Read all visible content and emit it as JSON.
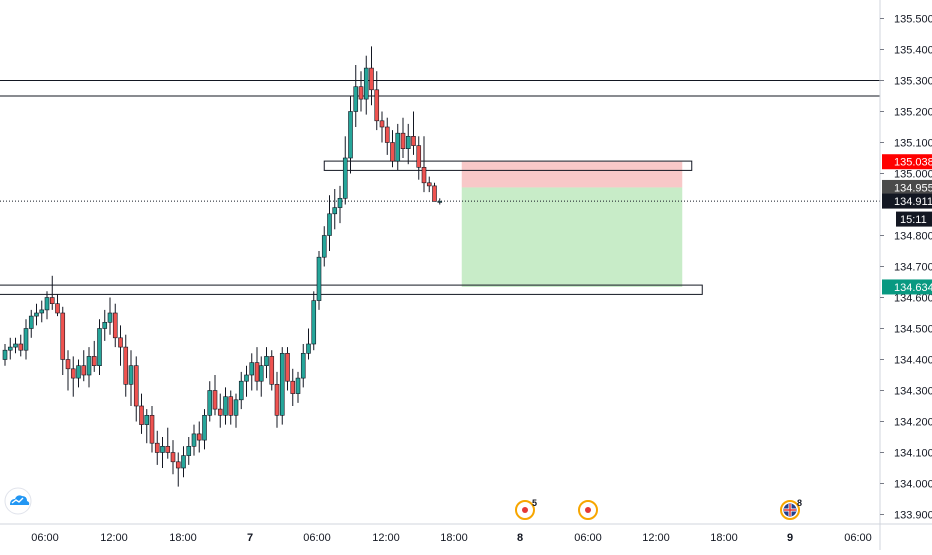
{
  "colors": {
    "up": "#26a69a",
    "down": "#ef5350",
    "wick": "#131722",
    "stop_zone": "#f8c8c8",
    "target_zone": "#c8ecc8",
    "stop_badge": "#ff0000",
    "target_badge": "#089981",
    "current_badge": "#131722",
    "entry_badge": "#4a4a4a",
    "axis_border": "#d1d4dc"
  },
  "icons": {
    "logo": "tradingview-cloud-icon",
    "event": "economic-event-icon",
    "flag": "uk-flag-icon"
  },
  "price_scale": {
    "ticks": [
      "135.500",
      "135.400",
      "135.300",
      "135.200",
      "135.100",
      "135.000",
      "134.800",
      "134.700",
      "134.600",
      "134.500",
      "134.400",
      "134.300",
      "134.200",
      "134.100",
      "134.000",
      "133.900"
    ],
    "tick_values": [
      135.5,
      135.4,
      135.3,
      135.2,
      135.1,
      135.0,
      134.8,
      134.7,
      134.6,
      134.5,
      134.4,
      134.3,
      134.2,
      134.1,
      134.0,
      133.9
    ]
  },
  "time_axis": {
    "labels": [
      "06:00",
      "12:00",
      "18:00",
      "7",
      "06:00",
      "12:00",
      "18:00",
      "8",
      "06:00",
      "12:00",
      "18:00",
      "9",
      "06:00"
    ],
    "label_hours": [
      6,
      12,
      18,
      24,
      30,
      36,
      42,
      48,
      54,
      60,
      66,
      72,
      78
    ]
  },
  "badges": {
    "stop": "135.038",
    "entry": "134.955",
    "current": "134.911",
    "countdown": "15:11",
    "target": "134.634"
  },
  "events": [
    {
      "hour": 48.0,
      "count": "5",
      "icon": "economic-event-icon"
    },
    {
      "hour": 54.0,
      "count": "",
      "icon": "economic-event-icon"
    },
    {
      "hour": 72.0,
      "count": "8",
      "icon": "uk-flag-icon"
    }
  ],
  "chart_data": {
    "type": "candlestick",
    "title": "",
    "xlabel": "",
    "ylabel": "",
    "ylim": [
      133.875,
      135.535
    ],
    "x_unit": "hours from start of day 6",
    "candles_x": [
      0,
      0.5,
      1,
      1.5,
      2,
      2.5,
      3,
      3.5,
      4,
      4.5,
      5,
      5.5,
      6,
      6.5,
      7,
      7.5,
      8,
      8.5,
      9,
      9.5,
      10,
      10.5,
      11,
      11.5,
      12,
      12.5,
      13,
      13.5,
      14,
      14.5,
      15,
      15.5,
      16,
      16.5,
      17,
      17.5,
      18,
      18.5,
      19,
      19.5,
      20,
      20.5,
      21,
      21.5,
      22,
      22.5,
      23,
      23.5,
      24,
      24.5,
      25,
      25.5,
      26,
      26.5,
      27,
      27.5,
      28,
      28.5,
      29,
      29.5,
      30,
      30.5,
      31,
      31.5,
      32,
      32.5,
      33,
      33.5,
      34,
      34.5,
      35,
      35.5,
      36,
      36.5,
      37,
      37.5,
      38,
      38.5,
      39,
      39.5,
      40,
      40.5,
      41,
      41.5,
      42,
      42.5,
      43,
      43.5
    ],
    "candles": [
      [
        134.4,
        134.45,
        134.38,
        134.43
      ],
      [
        134.43,
        134.47,
        134.4,
        134.44
      ],
      [
        134.44,
        134.47,
        134.42,
        134.45
      ],
      [
        134.45,
        134.48,
        134.41,
        134.43
      ],
      [
        134.43,
        134.53,
        134.4,
        134.5
      ],
      [
        134.5,
        134.56,
        134.47,
        134.54
      ],
      [
        134.54,
        134.58,
        134.51,
        134.55
      ],
      [
        134.55,
        134.59,
        134.52,
        134.56
      ],
      [
        134.56,
        134.62,
        134.53,
        134.6
      ],
      [
        134.6,
        134.67,
        134.56,
        134.58
      ],
      [
        134.58,
        134.61,
        134.54,
        134.55
      ],
      [
        134.55,
        134.57,
        134.35,
        134.4
      ],
      [
        134.4,
        134.43,
        134.3,
        134.37
      ],
      [
        134.37,
        134.41,
        134.28,
        134.34
      ],
      [
        134.34,
        134.4,
        134.31,
        134.38
      ],
      [
        134.38,
        134.43,
        134.33,
        134.35
      ],
      [
        134.35,
        134.44,
        134.31,
        134.41
      ],
      [
        134.41,
        134.46,
        134.36,
        134.38
      ],
      [
        134.38,
        134.53,
        134.35,
        134.5
      ],
      [
        134.5,
        134.56,
        134.46,
        134.52
      ],
      [
        134.52,
        134.6,
        134.48,
        134.55
      ],
      [
        134.55,
        134.58,
        134.44,
        134.47
      ],
      [
        134.47,
        134.51,
        134.38,
        134.44
      ],
      [
        134.44,
        134.48,
        134.28,
        134.32
      ],
      [
        134.32,
        134.43,
        134.25,
        134.38
      ],
      [
        134.38,
        134.41,
        134.2,
        134.25
      ],
      [
        134.25,
        134.29,
        134.16,
        134.19
      ],
      [
        134.19,
        134.24,
        134.13,
        134.22
      ],
      [
        134.22,
        134.25,
        134.1,
        134.13
      ],
      [
        134.13,
        134.17,
        134.06,
        134.1
      ],
      [
        134.1,
        134.15,
        134.05,
        134.12
      ],
      [
        134.12,
        134.18,
        134.08,
        134.1
      ],
      [
        134.1,
        134.14,
        134.03,
        134.07
      ],
      [
        134.07,
        134.1,
        133.99,
        134.05
      ],
      [
        134.05,
        134.12,
        134.02,
        134.09
      ],
      [
        134.09,
        134.15,
        134.06,
        134.12
      ],
      [
        134.12,
        134.19,
        134.09,
        134.16
      ],
      [
        134.16,
        134.2,
        134.1,
        134.14
      ],
      [
        134.14,
        134.24,
        134.11,
        134.22
      ],
      [
        134.22,
        134.33,
        134.2,
        134.3
      ],
      [
        134.3,
        134.35,
        134.22,
        134.24
      ],
      [
        134.24,
        134.29,
        134.18,
        134.22
      ],
      [
        134.22,
        134.31,
        134.19,
        134.28
      ],
      [
        134.28,
        134.3,
        134.19,
        134.22
      ],
      [
        134.22,
        134.29,
        134.18,
        134.27
      ],
      [
        134.27,
        134.36,
        134.24,
        134.33
      ],
      [
        134.33,
        134.38,
        134.28,
        134.35
      ],
      [
        134.35,
        134.42,
        134.3,
        134.39
      ],
      [
        134.39,
        134.44,
        134.3,
        134.33
      ],
      [
        134.33,
        134.41,
        134.28,
        134.38
      ],
      [
        134.38,
        134.44,
        134.34,
        134.41
      ],
      [
        134.41,
        134.43,
        134.3,
        134.32
      ],
      [
        134.32,
        134.36,
        134.18,
        134.22
      ],
      [
        134.22,
        134.44,
        134.19,
        134.42
      ],
      [
        134.42,
        134.44,
        134.3,
        134.33
      ],
      [
        134.33,
        134.37,
        134.25,
        134.29
      ],
      [
        134.29,
        134.36,
        134.26,
        134.34
      ],
      [
        134.34,
        134.45,
        134.31,
        134.42
      ],
      [
        134.42,
        134.5,
        134.4,
        134.45
      ],
      [
        134.45,
        134.62,
        134.43,
        134.59
      ],
      [
        134.59,
        134.75,
        134.56,
        134.73
      ],
      [
        134.73,
        134.83,
        134.7,
        134.8
      ],
      [
        134.8,
        134.93,
        134.75,
        134.87
      ],
      [
        134.87,
        134.95,
        134.82,
        134.89
      ],
      [
        134.89,
        134.96,
        134.84,
        134.92
      ],
      [
        134.92,
        135.12,
        134.9,
        135.05
      ],
      [
        135.05,
        135.25,
        135.0,
        135.2
      ],
      [
        135.2,
        135.35,
        135.15,
        135.28
      ],
      [
        135.28,
        135.33,
        135.2,
        135.24
      ],
      [
        135.24,
        135.38,
        135.19,
        135.34
      ],
      [
        135.34,
        135.41,
        135.22,
        135.27
      ],
      [
        135.27,
        135.33,
        135.14,
        135.17
      ],
      [
        135.17,
        135.2,
        135.1,
        135.15
      ],
      [
        135.15,
        135.18,
        135.06,
        135.1
      ],
      [
        135.1,
        135.14,
        135.02,
        135.04
      ],
      [
        135.04,
        135.16,
        135.01,
        135.13
      ],
      [
        135.13,
        135.18,
        135.05,
        135.08
      ],
      [
        135.08,
        135.16,
        135.03,
        135.12
      ],
      [
        135.12,
        135.2,
        135.06,
        135.09
      ],
      [
        135.09,
        135.12,
        134.98,
        135.02
      ],
      [
        135.02,
        135.12,
        134.94,
        134.97
      ],
      [
        134.97,
        134.99,
        134.94,
        134.96
      ],
      [
        134.96,
        134.97,
        134.91,
        134.91
      ],
      [
        134.91,
        134.92,
        134.9,
        134.91
      ],
      [
        134.91,
        134.91,
        134.91,
        134.91
      ],
      [
        134.91,
        134.91,
        134.91,
        134.91
      ],
      [
        134.91,
        134.91,
        134.91,
        134.91
      ],
      [
        134.91,
        134.91,
        134.91,
        134.91
      ]
    ],
    "candle_count_visible": 84,
    "horizontal_levels": [
      {
        "name": "resistance-zone",
        "low": 135.25,
        "high": 135.3,
        "x_from": -1,
        "x_to": 90
      },
      {
        "name": "entry-zone",
        "low": 135.01,
        "high": 135.04,
        "x_from": 30.5,
        "x_to": 65.5
      },
      {
        "name": "support-zone",
        "low": 134.61,
        "high": 134.64,
        "x_from": -1,
        "x_to": 66.5
      }
    ],
    "position": {
      "side": "short",
      "entry": 134.955,
      "stop": 135.038,
      "target": 134.634,
      "x_from": 43.5,
      "x_to": 64.5
    },
    "current_price": 134.911
  }
}
